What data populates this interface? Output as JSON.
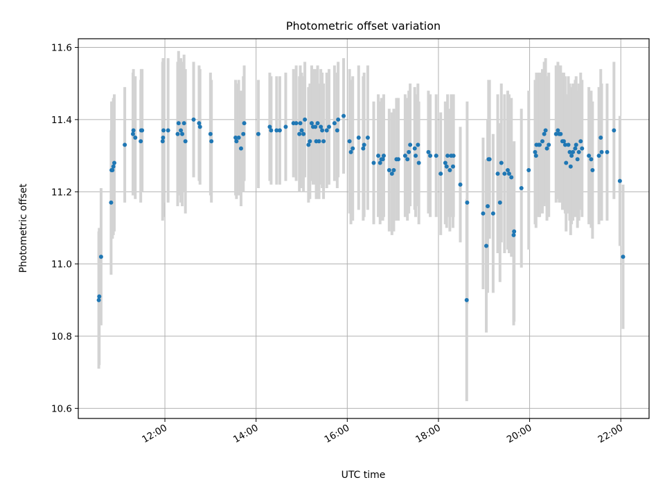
{
  "chart_data": {
    "type": "scatter",
    "title": "Photometric offset variation",
    "xlabel": "UTC time",
    "ylabel": "Photometric offset",
    "xlim": [
      10.1,
      22.62
    ],
    "ylim": [
      10.572,
      11.624
    ],
    "xticks": [
      {
        "value": 12,
        "label": "12:00"
      },
      {
        "value": 14,
        "label": "14:00"
      },
      {
        "value": 16,
        "label": "16:00"
      },
      {
        "value": 18,
        "label": "18:00"
      },
      {
        "value": 20,
        "label": "20:00"
      },
      {
        "value": 22,
        "label": "22:00"
      }
    ],
    "yticks": [
      10.6,
      10.8,
      11.0,
      11.2,
      11.4,
      11.6
    ],
    "ytick_labels": [
      "10.6",
      "10.8",
      "11.0",
      "11.2",
      "11.4",
      "11.6"
    ],
    "grid": true,
    "colors": {
      "point": "#1f77b4",
      "errorbar": "#d3d3d3"
    },
    "series": [
      {
        "points": [
          [
            10.55,
            10.9,
            0.19
          ],
          [
            10.56,
            10.91,
            0.19
          ],
          [
            10.6,
            11.02,
            0.19
          ],
          [
            10.82,
            11.17,
            0.2
          ],
          [
            10.83,
            11.26,
            0.19
          ],
          [
            10.85,
            11.26,
            0.19
          ],
          [
            10.87,
            11.27,
            0.19
          ],
          [
            10.89,
            11.28,
            0.19
          ],
          [
            11.12,
            11.33,
            0.16
          ],
          [
            11.3,
            11.36,
            0.17
          ],
          [
            11.31,
            11.37,
            0.17
          ],
          [
            11.35,
            11.35,
            0.17
          ],
          [
            11.47,
            11.34,
            0.17
          ],
          [
            11.48,
            11.37,
            0.17
          ],
          [
            11.5,
            11.37,
            0.17
          ],
          [
            11.95,
            11.34,
            0.22
          ],
          [
            11.96,
            11.35,
            0.22
          ],
          [
            11.97,
            11.37,
            0.2
          ],
          [
            12.07,
            11.37,
            0.2
          ],
          [
            12.28,
            11.36,
            0.2
          ],
          [
            12.3,
            11.39,
            0.2
          ],
          [
            12.35,
            11.37,
            0.2
          ],
          [
            12.38,
            11.36,
            0.2
          ],
          [
            12.42,
            11.39,
            0.19
          ],
          [
            12.45,
            11.34,
            0.2
          ],
          [
            12.63,
            11.4,
            0.16
          ],
          [
            12.75,
            11.39,
            0.16
          ],
          [
            12.77,
            11.38,
            0.16
          ],
          [
            13.0,
            11.36,
            0.17
          ],
          [
            13.02,
            11.34,
            0.17
          ],
          [
            13.55,
            11.35,
            0.16
          ],
          [
            13.57,
            11.34,
            0.16
          ],
          [
            13.62,
            11.35,
            0.16
          ],
          [
            13.67,
            11.32,
            0.16
          ],
          [
            13.72,
            11.36,
            0.16
          ],
          [
            13.74,
            11.39,
            0.16
          ],
          [
            14.05,
            11.36,
            0.15
          ],
          [
            14.3,
            11.38,
            0.15
          ],
          [
            14.33,
            11.37,
            0.15
          ],
          [
            14.45,
            11.37,
            0.15
          ],
          [
            14.52,
            11.37,
            0.15
          ],
          [
            14.65,
            11.38,
            0.15
          ],
          [
            14.82,
            11.39,
            0.15
          ],
          [
            14.88,
            11.39,
            0.16
          ],
          [
            14.95,
            11.36,
            0.16
          ],
          [
            14.97,
            11.39,
            0.16
          ],
          [
            15.0,
            11.37,
            0.16
          ],
          [
            15.04,
            11.36,
            0.16
          ],
          [
            15.07,
            11.4,
            0.16
          ],
          [
            15.15,
            11.33,
            0.16
          ],
          [
            15.18,
            11.34,
            0.16
          ],
          [
            15.22,
            11.39,
            0.16
          ],
          [
            15.25,
            11.38,
            0.16
          ],
          [
            15.3,
            11.38,
            0.16
          ],
          [
            15.32,
            11.34,
            0.16
          ],
          [
            15.35,
            11.39,
            0.16
          ],
          [
            15.38,
            11.34,
            0.16
          ],
          [
            15.42,
            11.38,
            0.16
          ],
          [
            15.45,
            11.37,
            0.16
          ],
          [
            15.48,
            11.34,
            0.16
          ],
          [
            15.55,
            11.37,
            0.16
          ],
          [
            15.6,
            11.38,
            0.16
          ],
          [
            15.72,
            11.39,
            0.16
          ],
          [
            15.78,
            11.37,
            0.16
          ],
          [
            15.8,
            11.4,
            0.16
          ],
          [
            15.92,
            11.41,
            0.16
          ],
          [
            16.05,
            11.34,
            0.2
          ],
          [
            16.08,
            11.31,
            0.2
          ],
          [
            16.12,
            11.32,
            0.2
          ],
          [
            16.25,
            11.35,
            0.2
          ],
          [
            16.35,
            11.32,
            0.2
          ],
          [
            16.37,
            11.33,
            0.2
          ],
          [
            16.45,
            11.35,
            0.2
          ],
          [
            16.58,
            11.28,
            0.17
          ],
          [
            16.68,
            11.3,
            0.17
          ],
          [
            16.72,
            11.28,
            0.17
          ],
          [
            16.75,
            11.29,
            0.17
          ],
          [
            16.78,
            11.29,
            0.17
          ],
          [
            16.8,
            11.3,
            0.17
          ],
          [
            16.92,
            11.26,
            0.17
          ],
          [
            16.98,
            11.25,
            0.17
          ],
          [
            17.02,
            11.26,
            0.17
          ],
          [
            17.08,
            11.29,
            0.17
          ],
          [
            17.12,
            11.29,
            0.17
          ],
          [
            17.27,
            11.3,
            0.17
          ],
          [
            17.32,
            11.29,
            0.17
          ],
          [
            17.35,
            11.31,
            0.17
          ],
          [
            17.38,
            11.33,
            0.17
          ],
          [
            17.48,
            11.32,
            0.17
          ],
          [
            17.5,
            11.3,
            0.17
          ],
          [
            17.55,
            11.33,
            0.17
          ],
          [
            17.57,
            11.28,
            0.17
          ],
          [
            17.78,
            11.31,
            0.17
          ],
          [
            17.82,
            11.3,
            0.17
          ],
          [
            17.95,
            11.3,
            0.17
          ],
          [
            18.05,
            11.25,
            0.17
          ],
          [
            18.15,
            11.28,
            0.17
          ],
          [
            18.18,
            11.27,
            0.17
          ],
          [
            18.2,
            11.3,
            0.17
          ],
          [
            18.25,
            11.26,
            0.17
          ],
          [
            18.28,
            11.3,
            0.17
          ],
          [
            18.32,
            11.27,
            0.17
          ],
          [
            18.33,
            11.3,
            0.17
          ],
          [
            18.48,
            11.22,
            0.16
          ],
          [
            18.62,
            10.9,
            0.28
          ],
          [
            18.63,
            11.17,
            0.28
          ],
          [
            18.98,
            11.14,
            0.21
          ],
          [
            19.05,
            11.05,
            0.24
          ],
          [
            19.08,
            11.16,
            0.24
          ],
          [
            19.1,
            11.29,
            0.22
          ],
          [
            19.12,
            11.29,
            0.22
          ],
          [
            19.2,
            11.14,
            0.22
          ],
          [
            19.3,
            11.25,
            0.22
          ],
          [
            19.35,
            11.17,
            0.22
          ],
          [
            19.38,
            11.28,
            0.22
          ],
          [
            19.45,
            11.25,
            0.22
          ],
          [
            19.52,
            11.26,
            0.22
          ],
          [
            19.55,
            11.25,
            0.22
          ],
          [
            19.6,
            11.24,
            0.22
          ],
          [
            19.65,
            11.08,
            0.25
          ],
          [
            19.66,
            11.09,
            0.25
          ],
          [
            19.82,
            11.21,
            0.22
          ],
          [
            19.98,
            11.26,
            0.22
          ],
          [
            20.12,
            11.31,
            0.2
          ],
          [
            20.14,
            11.3,
            0.2
          ],
          [
            20.15,
            11.33,
            0.2
          ],
          [
            20.2,
            11.33,
            0.2
          ],
          [
            20.22,
            11.33,
            0.2
          ],
          [
            20.28,
            11.34,
            0.2
          ],
          [
            20.32,
            11.36,
            0.2
          ],
          [
            20.35,
            11.37,
            0.2
          ],
          [
            20.38,
            11.32,
            0.2
          ],
          [
            20.42,
            11.33,
            0.2
          ],
          [
            20.58,
            11.36,
            0.19
          ],
          [
            20.62,
            11.37,
            0.19
          ],
          [
            20.65,
            11.36,
            0.19
          ],
          [
            20.68,
            11.36,
            0.19
          ],
          [
            20.72,
            11.34,
            0.19
          ],
          [
            20.75,
            11.34,
            0.19
          ],
          [
            20.78,
            11.33,
            0.19
          ],
          [
            20.8,
            11.28,
            0.19
          ],
          [
            20.85,
            11.33,
            0.19
          ],
          [
            20.88,
            11.31,
            0.19
          ],
          [
            20.9,
            11.27,
            0.19
          ],
          [
            20.92,
            11.3,
            0.19
          ],
          [
            20.95,
            11.31,
            0.19
          ],
          [
            21.0,
            11.32,
            0.19
          ],
          [
            21.02,
            11.33,
            0.19
          ],
          [
            21.05,
            11.29,
            0.19
          ],
          [
            21.08,
            11.31,
            0.19
          ],
          [
            21.12,
            11.34,
            0.19
          ],
          [
            21.15,
            11.32,
            0.19
          ],
          [
            21.3,
            11.3,
            0.19
          ],
          [
            21.35,
            11.29,
            0.19
          ],
          [
            21.38,
            11.26,
            0.19
          ],
          [
            21.52,
            11.3,
            0.19
          ],
          [
            21.56,
            11.35,
            0.19
          ],
          [
            21.58,
            11.31,
            0.19
          ],
          [
            21.7,
            11.31,
            0.19
          ],
          [
            21.85,
            11.37,
            0.19
          ],
          [
            21.98,
            11.23,
            0.18
          ],
          [
            22.05,
            11.02,
            0.2
          ]
        ]
      }
    ]
  }
}
